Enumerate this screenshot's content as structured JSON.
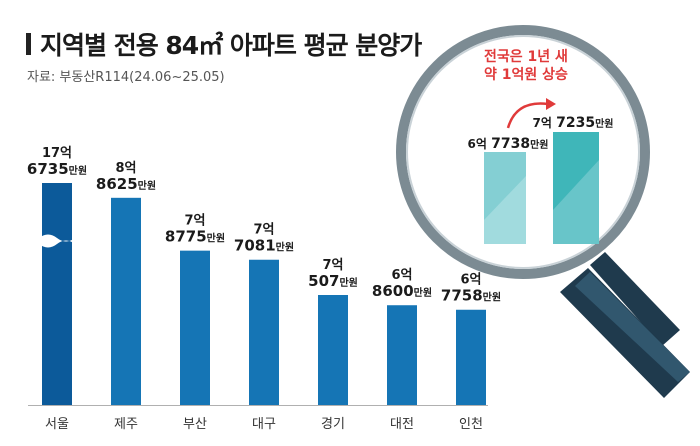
{
  "title": "지역별 전용 84㎡ 아파트 평균 분양가",
  "source": "자료: 부동산R114(24.06~25.05)",
  "colors": {
    "bar": "#1575b5",
    "bar_dark": "#0c5a9a",
    "teal": "#3fb6b9",
    "teal_light": "#84cfd3",
    "callout": "#e03a3a",
    "lens_handle": "#1f3a4d"
  },
  "chart_data": {
    "type": "bar",
    "unit": "만원",
    "categories": [
      "서울",
      "제주",
      "부산",
      "대구",
      "경기",
      "대전",
      "인천"
    ],
    "values": [
      176735,
      88625,
      78775,
      77081,
      70507,
      68600,
      67758
    ],
    "labels": [
      {
        "eok": "17억",
        "man": "6735",
        "unit": "만원"
      },
      {
        "eok": "8억",
        "man": "8625",
        "unit": "만원"
      },
      {
        "eok": "7억",
        "man": "8775",
        "unit": "만원"
      },
      {
        "eok": "7억",
        "man": "7081",
        "unit": "만원"
      },
      {
        "eok": "7억",
        "man": "507",
        "unit": "만원"
      },
      {
        "eok": "6억",
        "man": "8600",
        "unit": "만원"
      },
      {
        "eok": "6억",
        "man": "7758",
        "unit": "만원"
      }
    ],
    "axis_break_category": "서울"
  },
  "inset": {
    "callout_line1": "전국은 1년 새",
    "callout_line2": "약 1억원 상승",
    "before": {
      "eok": "6억",
      "man": "7738",
      "unit": "만원",
      "value": 67738
    },
    "after": {
      "eok": "7억",
      "man": "7235",
      "unit": "만원",
      "value": 77235
    }
  }
}
